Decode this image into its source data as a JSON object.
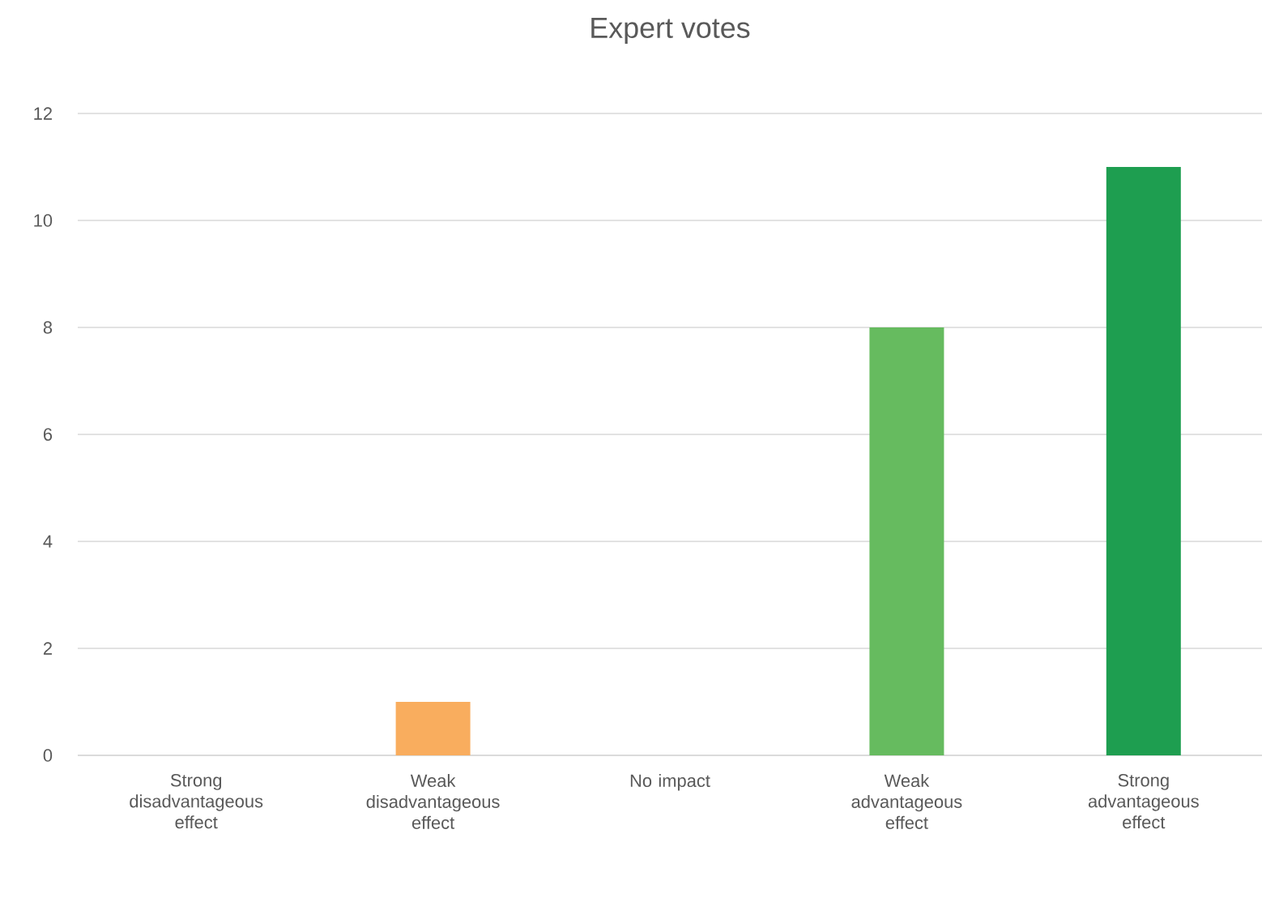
{
  "chart_data": {
    "type": "bar",
    "title": "Expert votes",
    "categories": [
      "Strong disadvantageous effect",
      "Weak disadvantageous effect",
      "No impact",
      "Weak advantageous effect",
      "Strong advantageous effect"
    ],
    "values": [
      0,
      1,
      0,
      8,
      11
    ],
    "colors": [
      "#e15b4f",
      "#f9ad5e",
      "#a5a5a5",
      "#66bb5f",
      "#1e9e50"
    ],
    "ylim": [
      0,
      12
    ],
    "yticks": [
      0,
      2,
      4,
      6,
      8,
      10,
      12
    ],
    "grid": "y"
  }
}
